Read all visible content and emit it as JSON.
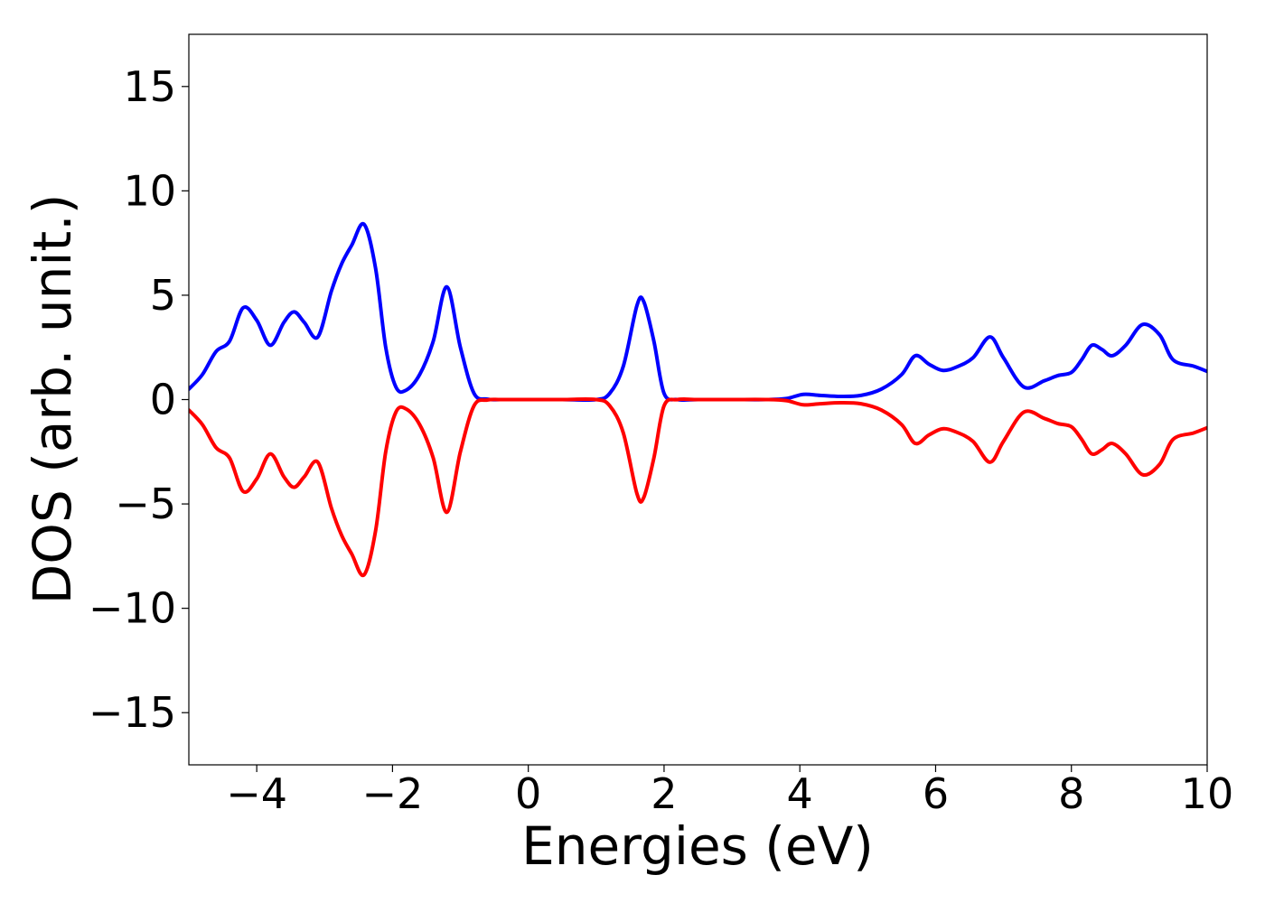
{
  "chart_data": {
    "type": "line",
    "title": "",
    "xlabel": "Energies (eV)",
    "ylabel": "DOS (arb. unit.)",
    "xlim": [
      -5,
      10
    ],
    "ylim": [
      -17.5,
      17.5
    ],
    "grid": false,
    "legend": "none",
    "x_ticks": [
      -4,
      -2,
      0,
      2,
      4,
      6,
      8,
      10
    ],
    "y_ticks": [
      -15,
      -10,
      -5,
      0,
      5,
      10,
      15
    ],
    "x_tick_labels": [
      "−4",
      "−2",
      "0",
      "2",
      "4",
      "6",
      "8",
      "10"
    ],
    "y_tick_labels": [
      "−15",
      "−10",
      "−5",
      "0",
      "5",
      "10",
      "15"
    ],
    "series": [
      {
        "color": "#0000ff",
        "x": [
          -5.0,
          -4.8,
          -4.6,
          -4.4,
          -4.2,
          -4.0,
          -3.8,
          -3.6,
          -3.45,
          -3.3,
          -3.1,
          -2.9,
          -2.75,
          -2.6,
          -2.42,
          -2.25,
          -2.1,
          -1.95,
          -1.8,
          -1.6,
          -1.4,
          -1.2,
          -1.0,
          -0.8,
          -0.6,
          -0.4,
          0.0,
          0.5,
          1.0,
          1.2,
          1.4,
          1.6,
          1.7,
          1.85,
          2.0,
          2.2,
          2.5,
          3.0,
          3.5,
          3.8,
          4.05,
          4.3,
          4.6,
          4.9,
          5.2,
          5.5,
          5.7,
          5.9,
          6.1,
          6.3,
          6.55,
          6.8,
          7.0,
          7.3,
          7.6,
          7.8,
          8.0,
          8.15,
          8.3,
          8.45,
          8.6,
          8.8,
          9.05,
          9.3,
          9.5,
          9.8,
          10.0
        ],
        "y": [
          0.5,
          1.2,
          2.3,
          2.8,
          4.4,
          3.8,
          2.6,
          3.7,
          4.2,
          3.7,
          3.0,
          5.2,
          6.5,
          7.4,
          8.4,
          6.3,
          2.5,
          0.6,
          0.45,
          1.2,
          2.8,
          5.4,
          2.5,
          0.3,
          0.02,
          0.0,
          0.0,
          0.0,
          0.0,
          0.3,
          1.6,
          4.5,
          4.7,
          2.8,
          0.3,
          0.0,
          0.0,
          0.0,
          0.0,
          0.05,
          0.25,
          0.2,
          0.15,
          0.2,
          0.5,
          1.2,
          2.1,
          1.7,
          1.4,
          1.55,
          2.0,
          3.0,
          2.0,
          0.6,
          0.9,
          1.15,
          1.3,
          1.9,
          2.6,
          2.4,
          2.1,
          2.6,
          3.6,
          3.1,
          1.9,
          1.6,
          1.35
        ]
      },
      {
        "color": "#ff0000",
        "x": [
          -5.0,
          -4.8,
          -4.6,
          -4.4,
          -4.2,
          -4.0,
          -3.8,
          -3.6,
          -3.45,
          -3.3,
          -3.1,
          -2.9,
          -2.75,
          -2.6,
          -2.42,
          -2.25,
          -2.1,
          -1.95,
          -1.8,
          -1.6,
          -1.4,
          -1.2,
          -1.0,
          -0.8,
          -0.6,
          -0.4,
          0.0,
          0.5,
          1.0,
          1.2,
          1.4,
          1.6,
          1.7,
          1.85,
          2.0,
          2.2,
          2.5,
          3.0,
          3.5,
          3.8,
          4.05,
          4.3,
          4.6,
          4.9,
          5.2,
          5.5,
          5.7,
          5.9,
          6.1,
          6.3,
          6.55,
          6.8,
          7.0,
          7.3,
          7.6,
          7.8,
          8.0,
          8.15,
          8.3,
          8.45,
          8.6,
          8.8,
          9.05,
          9.3,
          9.5,
          9.8,
          10.0
        ],
        "y": [
          -0.5,
          -1.2,
          -2.3,
          -2.8,
          -4.4,
          -3.8,
          -2.6,
          -3.7,
          -4.2,
          -3.7,
          -3.0,
          -5.2,
          -6.5,
          -7.4,
          -8.4,
          -6.3,
          -2.5,
          -0.6,
          -0.45,
          -1.2,
          -2.8,
          -5.4,
          -2.5,
          -0.3,
          -0.02,
          0.0,
          0.0,
          0.0,
          0.0,
          -0.3,
          -1.6,
          -4.5,
          -4.7,
          -2.8,
          -0.3,
          0.0,
          0.0,
          0.0,
          0.0,
          -0.05,
          -0.25,
          -0.2,
          -0.15,
          -0.2,
          -0.5,
          -1.2,
          -2.1,
          -1.7,
          -1.4,
          -1.55,
          -2.0,
          -3.0,
          -2.0,
          -0.6,
          -0.9,
          -1.15,
          -1.3,
          -1.9,
          -2.6,
          -2.4,
          -2.1,
          -2.6,
          -3.6,
          -3.1,
          -1.9,
          -1.6,
          -1.35
        ]
      }
    ]
  }
}
